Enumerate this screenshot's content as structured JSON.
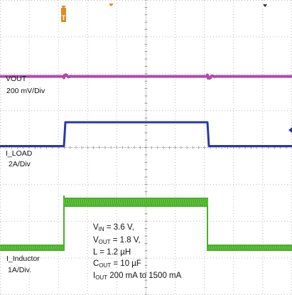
{
  "chart_data": {
    "type": "line",
    "channels": [
      {
        "name": "VOUT",
        "scale": "200 mV/Div",
        "color": "#b04aa8"
      },
      {
        "name": "I_LOAD",
        "scale": "2A/Div",
        "color": "#2a3aa0"
      },
      {
        "name": "I_Inductor",
        "scale": "1A/Div.",
        "color": "#49b02a"
      }
    ],
    "grid": {
      "divisions_x": 10,
      "divisions_y": 8,
      "visible": true
    },
    "trigger_marker": "T",
    "conditions": {
      "vin": {
        "symbol": "V",
        "sub": "IN",
        "text": " = 3.6 V,"
      },
      "vout": {
        "symbol": "V",
        "sub": "OUT",
        "text": " = 1.8 V,"
      },
      "l": {
        "symbol": "L",
        "sub": "",
        "text": " = 1.2 µH"
      },
      "cout": {
        "symbol": "C",
        "sub": "OUT",
        "text": " = 10 µF"
      },
      "iout": {
        "symbol": "I",
        "sub": "OUT",
        "text": " 200 mA to 1500 mA"
      }
    }
  }
}
